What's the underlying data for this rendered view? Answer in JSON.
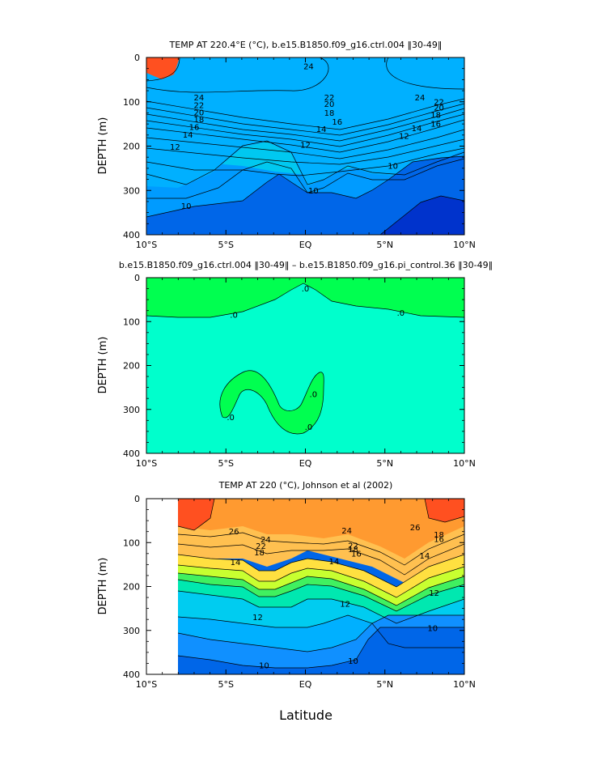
{
  "figure": {
    "xlabel": "Latitude",
    "ylabel": "DEPTH (m)",
    "x_ticks": [
      "10°S",
      "5°S",
      "EQ",
      "5°N",
      "10°N"
    ],
    "y_ticks": [
      "0",
      "100",
      "200",
      "300",
      "400"
    ]
  },
  "chart_data": [
    {
      "type": "heatmap",
      "title": "TEMP AT 220.4°E (°C), b.e15.B1850.f09_g16.ctrl.004 ‖30-49‖",
      "xlabel": "",
      "ylabel": "DEPTH (m)",
      "xlim": [
        -10,
        10
      ],
      "ylim": [
        400,
        0
      ],
      "contour_labels": [
        {
          "text": "24",
          "lat": 0.2,
          "depth": 20
        },
        {
          "text": "24",
          "lat": -6.7,
          "depth": 90
        },
        {
          "text": "24",
          "lat": 7.2,
          "depth": 90
        },
        {
          "text": "22",
          "lat": -6.7,
          "depth": 108
        },
        {
          "text": "22",
          "lat": 1.5,
          "depth": 90
        },
        {
          "text": "22",
          "lat": 8.4,
          "depth": 100
        },
        {
          "text": "20",
          "lat": -6.7,
          "depth": 124
        },
        {
          "text": "20",
          "lat": 1.5,
          "depth": 105
        },
        {
          "text": "20",
          "lat": 8.4,
          "depth": 113
        },
        {
          "text": "18",
          "lat": -6.7,
          "depth": 140
        },
        {
          "text": "18",
          "lat": 1.5,
          "depth": 125
        },
        {
          "text": "18",
          "lat": 8.2,
          "depth": 130
        },
        {
          "text": "16",
          "lat": -7.0,
          "depth": 157
        },
        {
          "text": "16",
          "lat": 2.0,
          "depth": 145
        },
        {
          "text": "16",
          "lat": 8.2,
          "depth": 150
        },
        {
          "text": "14",
          "lat": -7.4,
          "depth": 174
        },
        {
          "text": "14",
          "lat": 1.0,
          "depth": 162
        },
        {
          "text": "14",
          "lat": 7.0,
          "depth": 160
        },
        {
          "text": "12",
          "lat": -8.2,
          "depth": 202
        },
        {
          "text": "12",
          "lat": 0.0,
          "depth": 197
        },
        {
          "text": "12",
          "lat": 6.2,
          "depth": 177
        },
        {
          "text": "10",
          "lat": 5.5,
          "depth": 245
        },
        {
          "text": "10",
          "lat": 0.5,
          "depth": 300
        },
        {
          "text": "10",
          "lat": -7.5,
          "depth": 335
        }
      ]
    },
    {
      "type": "heatmap",
      "title": "b.e15.B1850.f09_g16.ctrl.004 ‖30-49‖ – b.e15.B1850.f09_g16.pi_control.36 ‖30-49‖",
      "xlabel": "",
      "ylabel": "DEPTH (m)",
      "xlim": [
        -10,
        10
      ],
      "ylim": [
        400,
        0
      ],
      "contour_labels": [
        {
          "text": ".0",
          "lat": 0.0,
          "depth": 25
        },
        {
          "text": ".0",
          "lat": -4.5,
          "depth": 85
        },
        {
          "text": ".0",
          "lat": 6.0,
          "depth": 80
        },
        {
          "text": ".0",
          "lat": 0.5,
          "depth": 265
        },
        {
          "text": ".0",
          "lat": -4.7,
          "depth": 318
        },
        {
          "text": ".0",
          "lat": 0.2,
          "depth": 340
        }
      ]
    },
    {
      "type": "heatmap",
      "title": "TEMP AT 220 (°C), Johnson et al (2002)",
      "xlabel": "Latitude",
      "ylabel": "DEPTH (m)",
      "xlim": [
        -10,
        10
      ],
      "ylim": [
        400,
        0
      ],
      "contour_labels": [
        {
          "text": "26",
          "lat": -4.5,
          "depth": 75
        },
        {
          "text": "26",
          "lat": 6.9,
          "depth": 65
        },
        {
          "text": "24",
          "lat": -2.5,
          "depth": 93
        },
        {
          "text": "24",
          "lat": 2.6,
          "depth": 73
        },
        {
          "text": "22",
          "lat": -2.8,
          "depth": 108
        },
        {
          "text": "22",
          "lat": 3.0,
          "depth": 107
        },
        {
          "text": "18",
          "lat": -2.9,
          "depth": 123
        },
        {
          "text": "18",
          "lat": 3.0,
          "depth": 115
        },
        {
          "text": "18",
          "lat": 8.4,
          "depth": 82
        },
        {
          "text": "16",
          "lat": 3.2,
          "depth": 125
        },
        {
          "text": "16",
          "lat": 8.4,
          "depth": 92
        },
        {
          "text": "14",
          "lat": -4.4,
          "depth": 145
        },
        {
          "text": "14",
          "lat": 1.8,
          "depth": 143
        },
        {
          "text": "14",
          "lat": 7.5,
          "depth": 130
        },
        {
          "text": "12",
          "lat": -3.0,
          "depth": 270
        },
        {
          "text": "12",
          "lat": 2.5,
          "depth": 240
        },
        {
          "text": "12",
          "lat": 8.1,
          "depth": 215
        },
        {
          "text": "10",
          "lat": 8.0,
          "depth": 295
        },
        {
          "text": "10",
          "lat": 3.0,
          "depth": 370
        },
        {
          "text": "10",
          "lat": -2.6,
          "depth": 380
        }
      ]
    }
  ]
}
